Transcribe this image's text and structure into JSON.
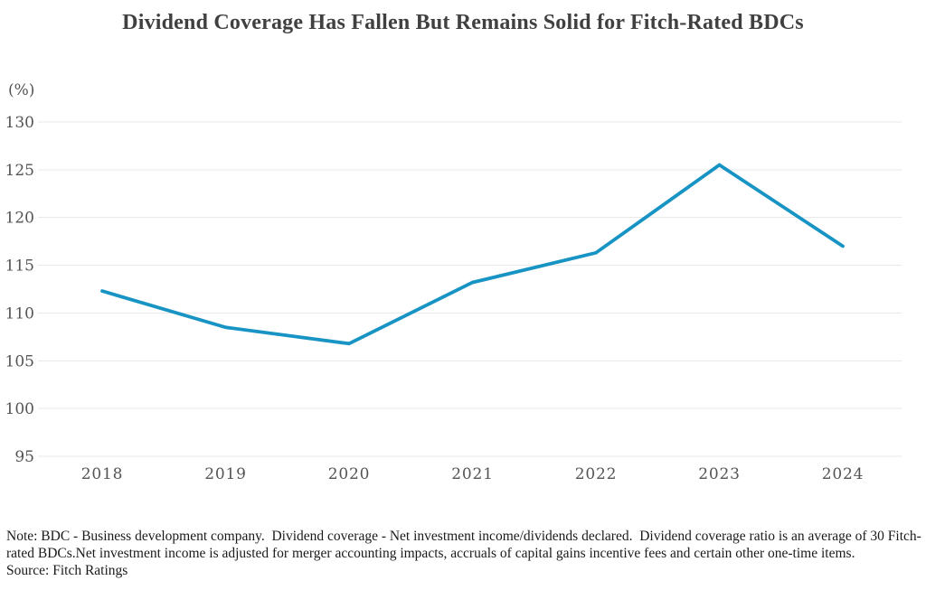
{
  "title": "Dividend Coverage Has Fallen But Remains Solid for Fitch-Rated BDCs",
  "chart_data": {
    "type": "line",
    "title": "Dividend Coverage Has Fallen But Remains Solid for Fitch-Rated BDCs",
    "categories": [
      "2018",
      "2019",
      "2020",
      "2021",
      "2022",
      "2023",
      "2024"
    ],
    "series": [
      {
        "name": "Dividend coverage ratio",
        "values": [
          112.3,
          108.5,
          106.8,
          113.2,
          116.3,
          125.5,
          117.0
        ]
      }
    ],
    "xlabel": "",
    "ylabel": "(%)",
    "ylim": [
      95,
      130
    ],
    "yticks": [
      95,
      100,
      105,
      110,
      115,
      120,
      125,
      130
    ],
    "grid": true,
    "legend": "none",
    "line_color": "#1793c4"
  },
  "footnote": {
    "note": "Note: BDC - Business development company.  Dividend coverage - Net investment income/dividends declared.  Dividend coverage ratio is an average of 30 Fitch-rated BDCs.Net investment income is adjusted for merger accounting impacts, accruals of capital gains incentive fees and certain other one-time items.",
    "source": "Source: Fitch Ratings"
  }
}
